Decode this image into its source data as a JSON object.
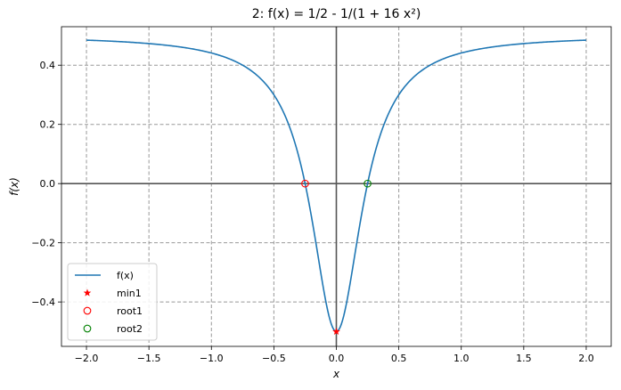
{
  "chart_data": {
    "type": "line",
    "title": "2: f(x) = 1/2 - 1/(1 + 16 x²)",
    "xlabel": "x",
    "ylabel": "f(x)",
    "xlim": [
      -2.2,
      2.2
    ],
    "ylim": [
      -0.55,
      0.53
    ],
    "xticks": [
      -2.0,
      -1.5,
      -1.0,
      -0.5,
      0.0,
      0.5,
      1.0,
      1.5,
      2.0
    ],
    "xtick_labels": [
      "−2.0",
      "−1.5",
      "−1.0",
      "−0.5",
      "0.0",
      "0.5",
      "1.0",
      "1.5",
      "2.0"
    ],
    "yticks": [
      -0.4,
      -0.2,
      0.0,
      0.2,
      0.4
    ],
    "ytick_labels": [
      "−0.4",
      "−0.2",
      "0.0",
      "0.2",
      "0.4"
    ],
    "grid": true,
    "legend_position": "lower-left",
    "function": {
      "expression": "1/2 - 1/(1 + 16 x^2)",
      "x_range": [
        -2.0,
        2.0
      ]
    },
    "series": [
      {
        "name": "f(x)",
        "kind": "line",
        "color": "#1f77b4"
      },
      {
        "name": "min1",
        "kind": "star",
        "color": "#ff0000",
        "points": [
          [
            0.0,
            -0.5
          ]
        ]
      },
      {
        "name": "root1",
        "kind": "open-circle",
        "color": "#ff0000",
        "points": [
          [
            -0.25,
            0.0
          ]
        ]
      },
      {
        "name": "root2",
        "kind": "open-circle",
        "color": "#008000",
        "points": [
          [
            0.25,
            0.0
          ]
        ]
      }
    ]
  }
}
